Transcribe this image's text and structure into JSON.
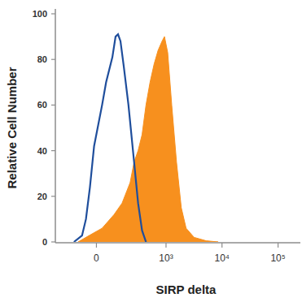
{
  "chart_data": {
    "type": "area",
    "xlabel": "SIRP delta",
    "ylabel": "Relative Cell Number",
    "xlim": [
      -300,
      250000
    ],
    "xticks": [
      0,
      {
        "value": 1000,
        "label": "10³"
      },
      {
        "value": 10000,
        "label": "10⁴"
      },
      {
        "value": 100000,
        "label": "10⁵"
      }
    ],
    "ylim": [
      0,
      100
    ],
    "yticks": [
      0,
      20,
      40,
      60,
      80,
      100
    ],
    "series": [
      {
        "type": "line",
        "color": "#1f4e9c",
        "x": [
          -122,
          -72,
          -51,
          -31,
          -11,
          27,
          47,
          81,
          100,
          116,
          133,
          158,
          199,
          258,
          308,
          366,
          433
        ],
        "values": [
          0,
          2.8,
          10,
          24,
          42,
          60,
          70,
          81,
          90,
          91,
          88,
          77,
          60,
          35,
          17,
          5,
          0
        ]
      },
      {
        "type": "area",
        "color": "#f7901e",
        "x": [
          -95,
          -31,
          27,
          91,
          145,
          215,
          258,
          308,
          366,
          433,
          514,
          610,
          720,
          849,
          938,
          1072,
          1265,
          1541,
          1875,
          2288,
          3175,
          5210,
          8530
        ],
        "values": [
          0,
          3,
          6,
          12,
          17,
          26,
          35,
          40,
          47,
          60,
          70,
          78,
          84,
          88,
          90,
          83,
          60,
          35,
          15,
          6,
          2,
          0.5,
          0
        ]
      }
    ]
  }
}
